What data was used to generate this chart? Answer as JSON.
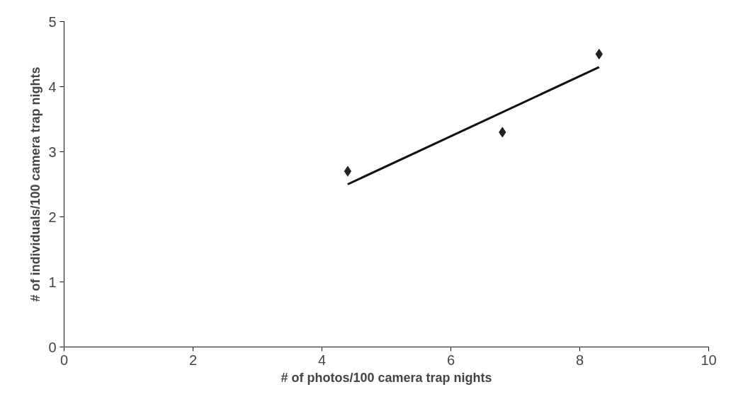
{
  "chart_data": {
    "type": "scatter",
    "xlabel": "# of photos/100 camera trap nights",
    "ylabel": "# of individuals/100 camera trap nights",
    "xlim": [
      0,
      10
    ],
    "ylim": [
      0,
      5
    ],
    "xticks": [
      0,
      2,
      4,
      6,
      8,
      10
    ],
    "yticks": [
      0,
      1,
      2,
      3,
      4,
      5
    ],
    "grid": false,
    "series": [
      {
        "color": "#222222",
        "marker": "diamond",
        "x": [
          4.4,
          6.8,
          8.3
        ],
        "values": [
          2.7,
          3.3,
          4.5
        ]
      },
      {
        "type": "line",
        "color": "#111111",
        "line_style": "solid",
        "x": [
          4.4,
          8.3
        ],
        "values": [
          2.5,
          4.3
        ]
      }
    ]
  }
}
